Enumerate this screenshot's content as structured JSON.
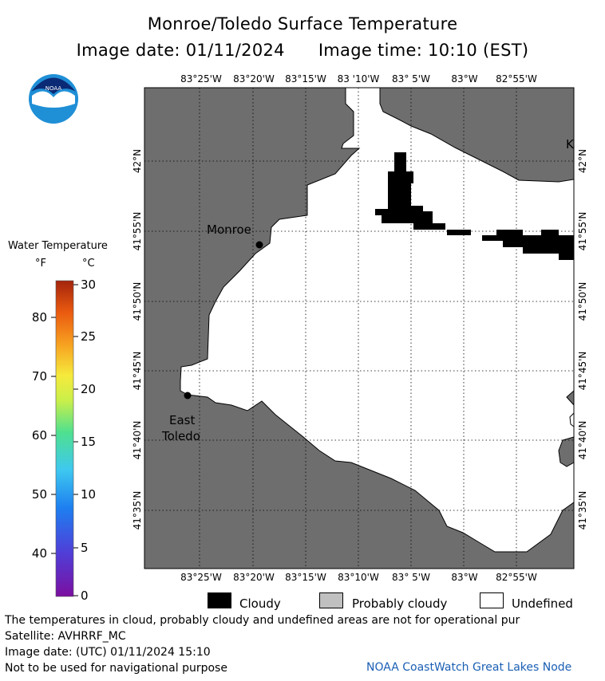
{
  "title": "Monroe/Toledo Surface Temperature",
  "image_date_label": "Image date: 01/11/2024",
  "image_time_label": "Image time: 10:10 (EST)",
  "logo_text": "NOAA",
  "legend": {
    "title": "Water Temperature",
    "unit_f": "°F",
    "unit_c": "°C",
    "f_ticks": [
      "80",
      "70",
      "60",
      "50",
      "40"
    ],
    "c_ticks": [
      "30",
      "25",
      "20",
      "15",
      "10",
      "5",
      "0"
    ],
    "colors": [
      "#7b0fa0",
      "#4f3fd8",
      "#1e7ff0",
      "#3ec8f0",
      "#4fe08f",
      "#c9ef4a",
      "#f6ea3c",
      "#f7a020",
      "#ea5a10",
      "#a3240c"
    ]
  },
  "map": {
    "lon_labels": [
      "83°25'W",
      "83°20'W",
      "83°15'W",
      "83 '10'W",
      "83° 5'W",
      "83°W",
      "82°55'W"
    ],
    "lon_labels_bottom": [
      "83°25'W",
      "83°20'W",
      "83°15'W",
      "83°10'W",
      "83° 5'W",
      "83°W",
      "82°55'W"
    ],
    "lat_labels": [
      "42°N",
      "41°55'N",
      "41°50'N",
      "41°45'N",
      "41°40'N",
      "41°35'N"
    ],
    "places": [
      {
        "name": "Monroe"
      },
      {
        "name": "East"
      },
      {
        "name": "Toledo"
      }
    ],
    "edge_label": "K",
    "land_color": "#6e6e6e",
    "cloud_color": "#000000"
  },
  "key": {
    "cloudy": "Cloudy",
    "probably_cloudy": "Probably cloudy",
    "undefined": "Undefined",
    "probably_cloudy_color": "#c0c0c0"
  },
  "footer": {
    "line1": "The temperatures in cloud, probably cloudy and undefined areas are not for operational pur",
    "line2": "Satellite: AVHRRF_MC",
    "line3": "Image date: (UTC) 01/11/2024  15:10",
    "line4": "Not to be used for navigational purpose",
    "credit": "NOAA CoastWatch Great Lakes Node"
  }
}
